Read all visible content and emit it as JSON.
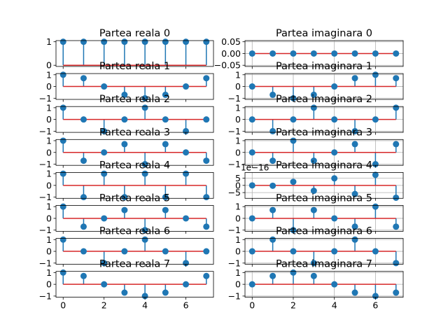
{
  "chart_data": {
    "type": "stem",
    "layout": "8 rows x 2 columns of stem subplots",
    "x": [
      0,
      1,
      2,
      3,
      4,
      5,
      6,
      7
    ],
    "x_ticks": [
      "0",
      "2",
      "4",
      "6"
    ],
    "colors": {
      "stem": "#1f77b4",
      "baseline": "#d62728",
      "grid": "#b0b0b0"
    },
    "grid": "on (right column)",
    "panels": [
      {
        "col": 0,
        "row": 0,
        "title": "Partea reala  0",
        "y": [
          1,
          1,
          1,
          1,
          1,
          1,
          1,
          1
        ],
        "ylim": [
          -0.05,
          1.05
        ],
        "y_ticks": [
          {
            "v": 1,
            "t": "1"
          },
          {
            "v": 0,
            "t": "0"
          }
        ]
      },
      {
        "col": 0,
        "row": 1,
        "title": "Partea reala  1",
        "y": [
          1,
          0.707,
          0,
          -0.707,
          -1,
          -0.707,
          0,
          0.707
        ],
        "ylim": [
          -1.1,
          1.1
        ],
        "y_ticks": [
          {
            "v": 1,
            "t": "1"
          },
          {
            "v": 0,
            "t": "0"
          },
          {
            "v": -1,
            "t": "−1"
          }
        ]
      },
      {
        "col": 0,
        "row": 2,
        "title": "Partea reala  2",
        "y": [
          1,
          0,
          -1,
          0,
          1,
          0,
          -1,
          0
        ],
        "ylim": [
          -1.1,
          1.1
        ],
        "y_ticks": [
          {
            "v": 1,
            "t": "1"
          },
          {
            "v": 0,
            "t": "0"
          },
          {
            "v": -1,
            "t": "−1"
          }
        ]
      },
      {
        "col": 0,
        "row": 3,
        "title": "Partea reala  3",
        "y": [
          1,
          -0.707,
          0,
          0.707,
          -1,
          0.707,
          0,
          -0.707
        ],
        "ylim": [
          -1.1,
          1.1
        ],
        "y_ticks": [
          {
            "v": 1,
            "t": "1"
          },
          {
            "v": 0,
            "t": "0"
          },
          {
            "v": -1,
            "t": "−1"
          }
        ]
      },
      {
        "col": 0,
        "row": 4,
        "title": "Partea reala  4",
        "y": [
          1,
          -1,
          1,
          -1,
          1,
          -1,
          1,
          -1
        ],
        "ylim": [
          -1.1,
          1.1
        ],
        "y_ticks": [
          {
            "v": 1,
            "t": "1"
          },
          {
            "v": 0,
            "t": "0"
          },
          {
            "v": -1,
            "t": "−1"
          }
        ]
      },
      {
        "col": 0,
        "row": 5,
        "title": "Partea reala  5",
        "y": [
          1,
          -0.707,
          0,
          0.707,
          -1,
          0.707,
          0,
          -0.707
        ],
        "ylim": [
          -1.1,
          1.1
        ],
        "y_ticks": [
          {
            "v": 1,
            "t": "1"
          },
          {
            "v": 0,
            "t": "0"
          },
          {
            "v": -1,
            "t": "−1"
          }
        ]
      },
      {
        "col": 0,
        "row": 6,
        "title": "Partea reala  6",
        "y": [
          1,
          0,
          -1,
          0,
          1,
          0,
          -1,
          0
        ],
        "ylim": [
          -1.1,
          1.1
        ],
        "y_ticks": [
          {
            "v": 1,
            "t": "1"
          },
          {
            "v": 0,
            "t": "0"
          },
          {
            "v": -1,
            "t": "−1"
          }
        ]
      },
      {
        "col": 0,
        "row": 7,
        "title": "Partea reala  7",
        "y": [
          1,
          0.707,
          0,
          -0.707,
          -1,
          -0.707,
          0,
          0.707
        ],
        "ylim": [
          -1.1,
          1.1
        ],
        "y_ticks": [
          {
            "v": 1,
            "t": "1"
          },
          {
            "v": 0,
            "t": "0"
          },
          {
            "v": -1,
            "t": "−1"
          }
        ]
      },
      {
        "col": 1,
        "row": 0,
        "title": "Partea imaginara  0",
        "y": [
          0,
          0,
          0,
          0,
          0,
          0,
          0,
          0
        ],
        "ylim": [
          -0.055,
          0.055
        ],
        "y_ticks": [
          {
            "v": 0.05,
            "t": "0.05"
          },
          {
            "v": 0,
            "t": "0.00"
          },
          {
            "v": -0.05,
            "t": "−0.05"
          }
        ]
      },
      {
        "col": 1,
        "row": 1,
        "title": "Partea imaginara  1",
        "y": [
          0,
          -0.707,
          -1,
          -0.707,
          0,
          0.707,
          1,
          0.707
        ],
        "ylim": [
          -1.1,
          1.1
        ],
        "y_ticks": [
          {
            "v": 1,
            "t": "1"
          },
          {
            "v": 0,
            "t": "0"
          },
          {
            "v": -1,
            "t": "−1"
          }
        ]
      },
      {
        "col": 1,
        "row": 2,
        "title": "Partea imaginara  2",
        "y": [
          0,
          -1,
          0,
          1,
          0,
          -1,
          0,
          1
        ],
        "ylim": [
          -1.1,
          1.1
        ],
        "y_ticks": [
          {
            "v": 1,
            "t": "1"
          },
          {
            "v": 0,
            "t": "0"
          },
          {
            "v": -1,
            "t": "−1"
          }
        ]
      },
      {
        "col": 1,
        "row": 3,
        "title": "Partea imaginara  3",
        "y": [
          0,
          -0.707,
          1,
          -0.707,
          0,
          0.707,
          -1,
          0.707
        ],
        "ylim": [
          -1.1,
          1.1
        ],
        "y_ticks": [
          {
            "v": 1,
            "t": "1"
          },
          {
            "v": 0,
            "t": "0"
          },
          {
            "v": -1,
            "t": "−1"
          }
        ]
      },
      {
        "col": 1,
        "row": 4,
        "title": "Partea imaginara  4",
        "offset_text": "1e−16",
        "y": [
          0,
          -0.25,
          2.5,
          -3.75,
          4.9,
          -6.0,
          7.35,
          -8.6
        ],
        "ylim": [
          -9,
          9
        ],
        "y_ticks": [
          {
            "v": 5,
            "t": "5"
          },
          {
            "v": 0,
            "t": "0"
          },
          {
            "v": -5,
            "t": "−5"
          }
        ]
      },
      {
        "col": 1,
        "row": 5,
        "title": "Partea imaginara  5",
        "y": [
          0,
          0.707,
          -1,
          0.707,
          0,
          -0.707,
          1,
          -0.707
        ],
        "ylim": [
          -1.1,
          1.1
        ],
        "y_ticks": [
          {
            "v": 1,
            "t": "1"
          },
          {
            "v": 0,
            "t": "0"
          },
          {
            "v": -1,
            "t": "−1"
          }
        ]
      },
      {
        "col": 1,
        "row": 6,
        "title": "Partea imaginara  6",
        "y": [
          0,
          1,
          0,
          -1,
          0,
          1,
          0,
          -1
        ],
        "ylim": [
          -1.1,
          1.1
        ],
        "y_ticks": [
          {
            "v": 1,
            "t": "1"
          },
          {
            "v": 0,
            "t": "0"
          },
          {
            "v": -1,
            "t": "−1"
          }
        ]
      },
      {
        "col": 1,
        "row": 7,
        "title": "Partea imaginara  7",
        "y": [
          0,
          0.707,
          1,
          0.707,
          0,
          -0.707,
          -1,
          -0.707
        ],
        "ylim": [
          -1.1,
          1.1
        ],
        "y_ticks": [
          {
            "v": 1,
            "t": "1"
          },
          {
            "v": 0,
            "t": "0"
          },
          {
            "v": -1,
            "t": "−1"
          }
        ]
      }
    ]
  }
}
